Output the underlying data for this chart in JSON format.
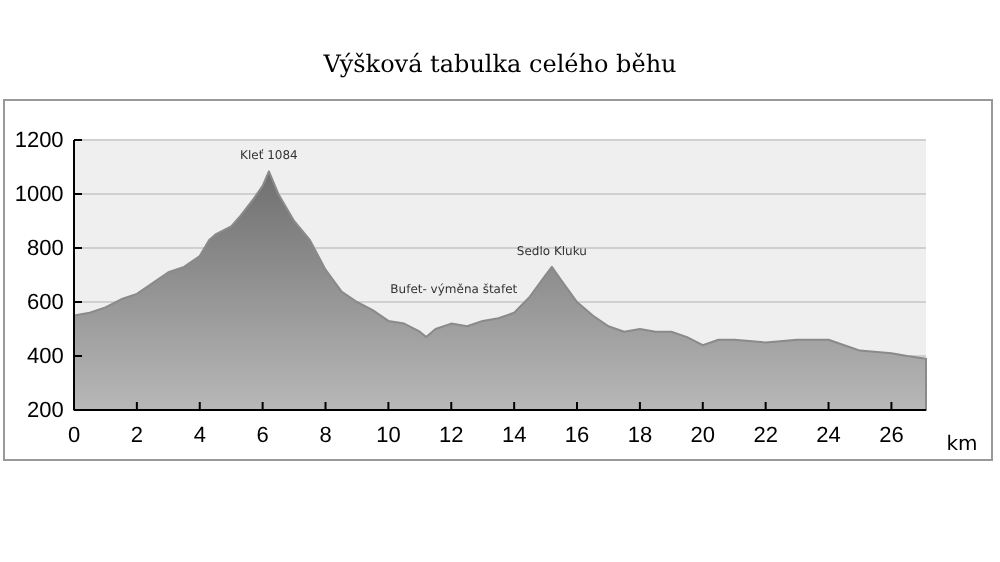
{
  "chart_data": {
    "type": "area",
    "title": "Výšková tabulka celého běhu",
    "xlabel": "km",
    "x": [
      0,
      0.5,
      1,
      1.5,
      2,
      2.5,
      3,
      3.5,
      4,
      4.3,
      4.5,
      5,
      5.3,
      5.7,
      6,
      6.2,
      6.5,
      7,
      7.5,
      8,
      8.5,
      9,
      9.5,
      10,
      10.5,
      11,
      11.2,
      11.5,
      12,
      12.5,
      13,
      13.5,
      14,
      14.5,
      15,
      15.2,
      15.5,
      16,
      16.5,
      17,
      17.5,
      18,
      18.5,
      19,
      19.5,
      20,
      20.5,
      21,
      22,
      23,
      24,
      24.5,
      25,
      26,
      26.5,
      27.1
    ],
    "series": [
      {
        "color": "#8a8a8a",
        "values": [
          550,
          560,
          580,
          610,
          630,
          670,
          710,
          730,
          770,
          830,
          850,
          880,
          920,
          980,
          1030,
          1084,
          1000,
          900,
          830,
          720,
          640,
          600,
          570,
          530,
          520,
          490,
          470,
          500,
          520,
          510,
          530,
          540,
          560,
          620,
          700,
          730,
          680,
          600,
          550,
          510,
          490,
          500,
          490,
          490,
          470,
          440,
          460,
          460,
          450,
          460,
          460,
          440,
          420,
          410,
          400,
          390
        ]
      }
    ],
    "xlim": [
      0,
      27.1
    ],
    "xticks": [
      0,
      2,
      4,
      6,
      8,
      10,
      12,
      14,
      16,
      18,
      20,
      22,
      24,
      26
    ],
    "ylim": [
      200,
      1200
    ],
    "yticks": [
      200,
      400,
      600,
      800,
      1000,
      1200
    ],
    "grid": "y",
    "annotations": [
      {
        "text": "Kleť 1084",
        "x": 6.2,
        "y": 1084
      },
      {
        "text": "Sedlo Kluku",
        "x": 15.2,
        "y": 730
      },
      {
        "text": "Bufet- výměna štafet",
        "x": 14.1,
        "y": 590
      }
    ]
  }
}
